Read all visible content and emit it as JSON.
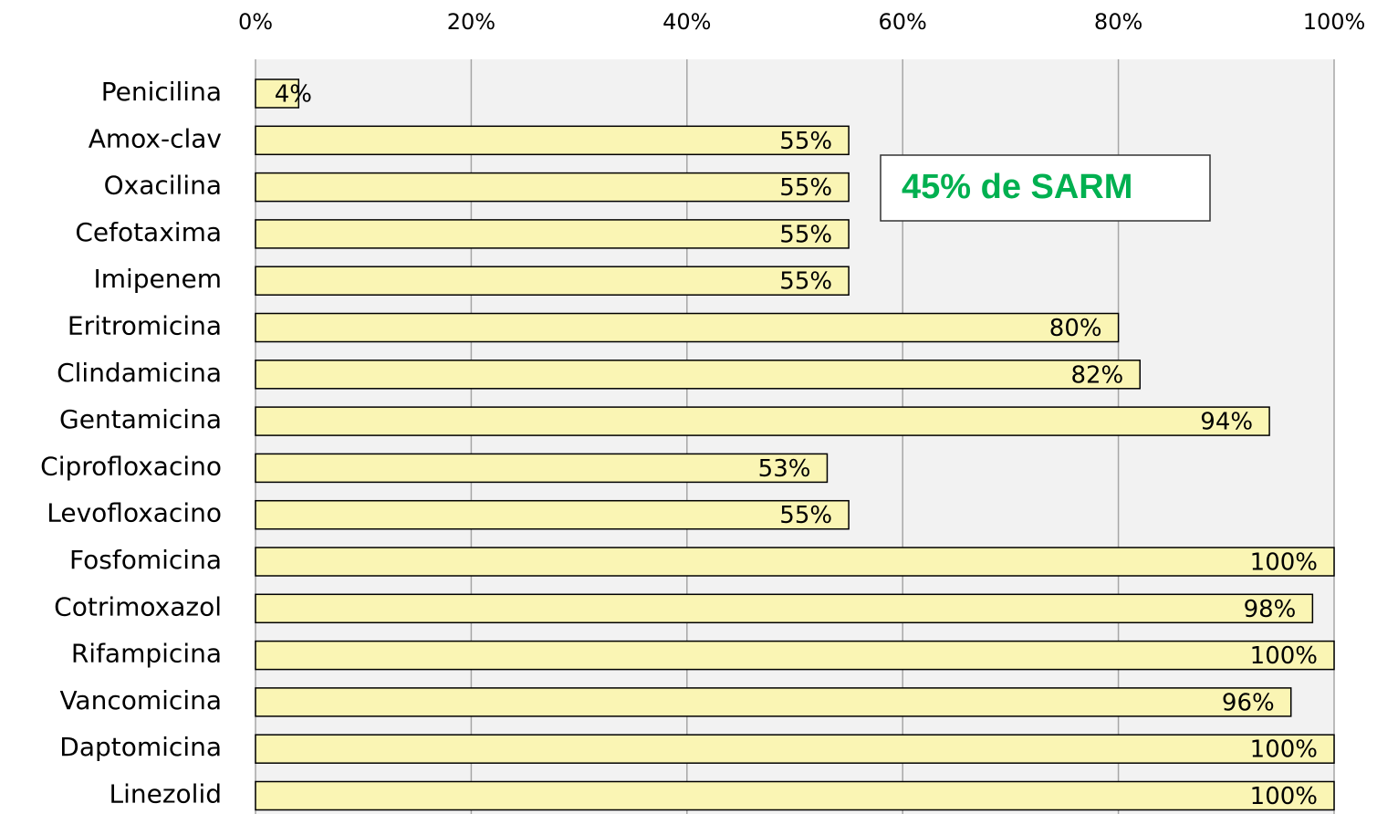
{
  "chart_data": {
    "type": "barh",
    "categories": [
      "Penicilina",
      "Amox-clav",
      "Oxacilina",
      "Cefotaxima",
      "Imipenem",
      "Eritromicina",
      "Clindamicina",
      "Gentamicina",
      "Ciprofloxacino",
      "Levofloxacino",
      "Fosfomicina",
      "Cotrimoxazol",
      "Rifampicina",
      "Vancomicina",
      "Daptomicina",
      "Linezolid"
    ],
    "values": [
      4,
      55,
      55,
      55,
      55,
      80,
      82,
      94,
      53,
      55,
      100,
      98,
      100,
      96,
      100,
      100
    ],
    "value_labels": [
      "4%",
      "55%",
      "55%",
      "55%",
      "55%",
      "80%",
      "82%",
      "94%",
      "53%",
      "55%",
      "100%",
      "98%",
      "100%",
      "96%",
      "100%",
      "100%"
    ],
    "color": "#faf5b4",
    "xlim": [
      0,
      100
    ],
    "xticks": [
      {
        "value": 0,
        "label": "0%"
      },
      {
        "value": 20,
        "label": "20%"
      },
      {
        "value": 40,
        "label": "40%"
      },
      {
        "value": 60,
        "label": "60%"
      },
      {
        "value": 80,
        "label": "80%"
      },
      {
        "value": 100,
        "label": "100%"
      }
    ],
    "grid": true,
    "annotation": "45% de SARM"
  }
}
